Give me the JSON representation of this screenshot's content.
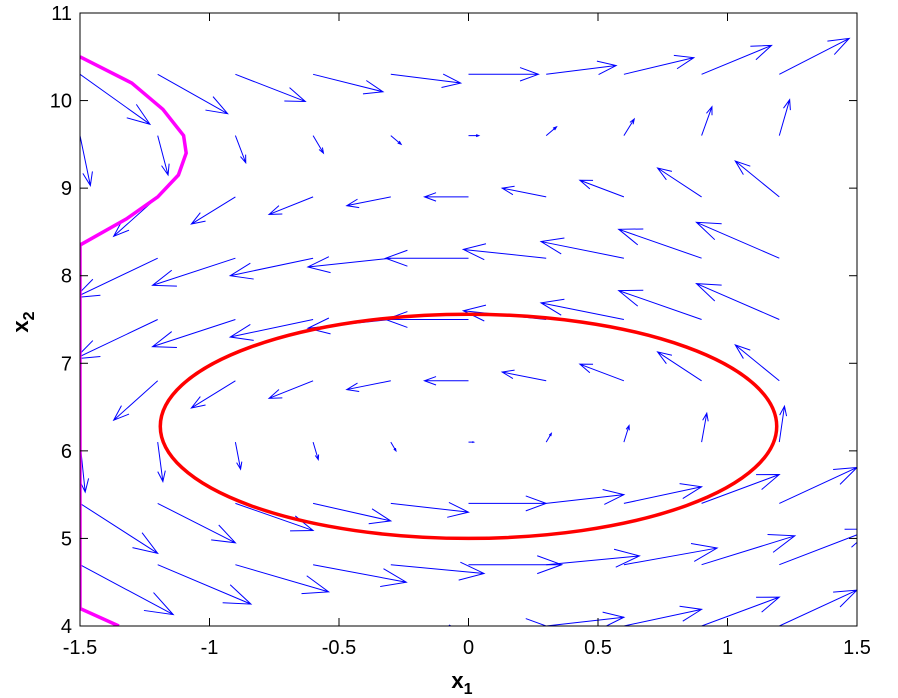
{
  "chart_data": {
    "type": "quiver",
    "xlabel": {
      "base": "x",
      "sub": "1"
    },
    "ylabel": {
      "base": "x",
      "sub": "2"
    },
    "xlim": [
      -1.5,
      1.5
    ],
    "ylim": [
      4,
      11
    ],
    "xticks": [
      -1.5,
      -1,
      -0.5,
      0,
      0.5,
      1,
      1.5
    ],
    "yticks": [
      4,
      5,
      6,
      7,
      8,
      9,
      10,
      11
    ],
    "x": [
      -1.5,
      -1.2,
      -0.9,
      -0.6,
      -0.3,
      0,
      0.3,
      0.6,
      0.9,
      1.2
    ],
    "y": [
      4,
      4.7,
      5.4,
      6.1,
      6.8,
      7.5,
      8.2,
      8.9,
      9.6,
      10.3
    ],
    "u_by_row": [
      0.3,
      0.36,
      0.3,
      0.02,
      -0.17,
      -0.32,
      -0.32,
      -0.17,
      0.04,
      0.27
    ],
    "v_by_column": [
      -0.57,
      -0.45,
      -0.31,
      -0.2,
      -0.1,
      0,
      0.1,
      0.19,
      0.33,
      0.41
    ],
    "arrow_color": "#0000ff",
    "curves": [
      {
        "shape": "ellipse",
        "color": "#ff0000",
        "center": [
          0,
          6.28
        ],
        "radii": [
          1.19,
          1.28
        ]
      },
      {
        "shape": "line",
        "color": "#ff00ff",
        "x": [
          -1.5,
          -1.3,
          -1.18,
          -1.1,
          -1.09,
          -1.12,
          -1.2,
          -1.32,
          -1.5,
          -1.5,
          -1.5,
          -1.35
        ],
        "y": [
          10.5,
          10.2,
          9.9,
          9.6,
          9.4,
          9.15,
          8.9,
          8.65,
          8.35,
          8.3,
          4.2,
          4.0
        ]
      }
    ]
  }
}
